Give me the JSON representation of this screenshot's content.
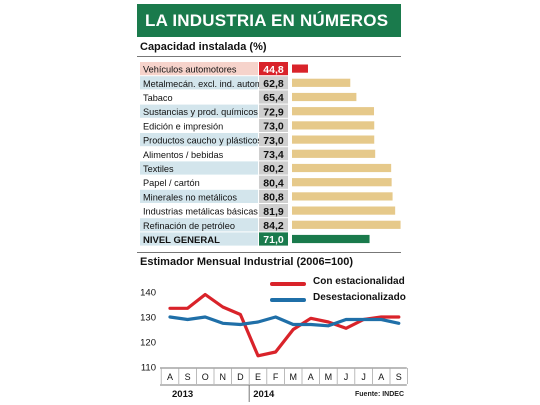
{
  "header": {
    "title": "LA INDUSTRIA EN NÚMEROS"
  },
  "colors": {
    "header_green": "#1a7a4c",
    "bar_tan": "#e6c98a",
    "highlight_red": "#d9232a",
    "highlight_pink": "#f6d3cb",
    "row_blue": "#d3e5ec",
    "nivel_green": "#1a7a4c",
    "series_red": "#d9232a",
    "series_blue": "#1f6fa8"
  },
  "capacity": {
    "title": "Capacidad instalada (%)",
    "chart_data": {
      "type": "bar",
      "categories": [
        "Vehículos automotores",
        "Metalmecán. excl. ind. autom.",
        "Tabaco",
        "Sustancias y prod. químicos",
        "Edición e impresión",
        "Productos caucho y plásticos",
        "Alimentos / bebidas",
        "Textiles",
        "Papel / cartón",
        "Minerales no metálicos",
        "Industrias metálicas básicas",
        "Refinación de petróleo",
        "NIVEL GENERAL"
      ],
      "value_labels": [
        "44,8",
        "62,8",
        "65,4",
        "72,9",
        "73,0",
        "73,0",
        "73,4",
        "80,2",
        "80,4",
        "80,8",
        "81,9",
        "84,2",
        "71,0"
      ],
      "values": [
        44.8,
        62.8,
        65.4,
        72.9,
        73.0,
        73.0,
        73.4,
        80.2,
        80.4,
        80.8,
        81.9,
        84.2,
        71.0
      ]
    }
  },
  "estimator": {
    "title": "Estimador Mensual Industrial (2006=100)",
    "source": "Fuente: INDEC",
    "chart_data": {
      "type": "line",
      "x": [
        "A",
        "S",
        "O",
        "N",
        "D",
        "E",
        "F",
        "M",
        "A",
        "M",
        "J",
        "J",
        "A",
        "S"
      ],
      "year_labels": [
        "2013",
        "2014"
      ],
      "y_ticks": [
        "140",
        "130",
        "120",
        "110"
      ],
      "ylim": [
        110,
        140
      ],
      "series": [
        {
          "name": "Con estacionalidad",
          "values": [
            133.5,
            133.5,
            139,
            134,
            131,
            114.5,
            116,
            125,
            129.5,
            128,
            125.5,
            129,
            130,
            130
          ]
        },
        {
          "name": "Desestacionalizado",
          "values": [
            130,
            129,
            130,
            127.5,
            127,
            128,
            130,
            127,
            127,
            126.5,
            129,
            129,
            129,
            127.5
          ]
        }
      ]
    }
  }
}
